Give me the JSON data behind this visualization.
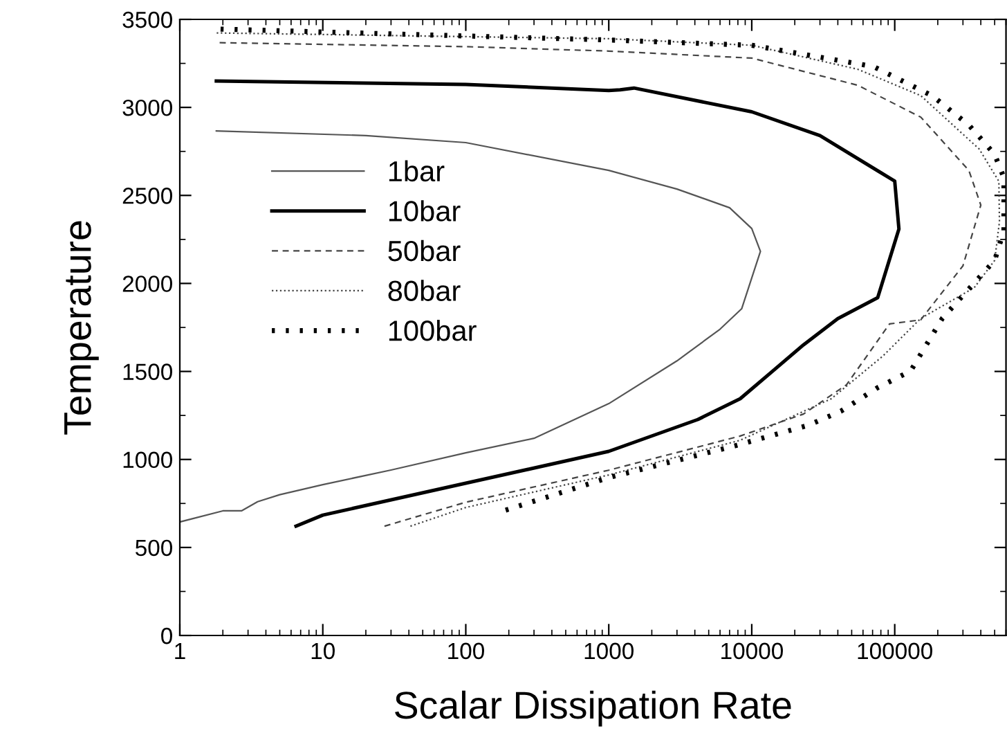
{
  "chart_data": {
    "type": "line",
    "xlabel": "Scalar Dissipation Rate",
    "ylabel": "Temperature",
    "log": "x",
    "xlim": [
      1,
      600000
    ],
    "xticks": [
      1,
      10,
      100,
      1000,
      10000,
      100000
    ],
    "ylim": [
      0,
      3500
    ],
    "yticks": [
      0,
      500,
      1000,
      1500,
      2000,
      2500,
      3000,
      3500
    ],
    "grid": false,
    "legend": "left",
    "marker": "none",
    "series": [
      {
        "name": "1bar",
        "color": "#555555",
        "line_style": "solid",
        "x": [
          1,
          2,
          2.7,
          3.5,
          5,
          10,
          30,
          100,
          300,
          1000,
          3000,
          6000,
          8500,
          11500,
          10000,
          7000,
          3000,
          1000,
          100,
          20,
          1.8
        ],
        "values": [
          645,
          708,
          708,
          760,
          800,
          857,
          940,
          1038,
          1120,
          1317,
          1560,
          1740,
          1856,
          2182,
          2312,
          2430,
          2536,
          2642,
          2800,
          2840,
          2866
        ]
      },
      {
        "name": "10bar",
        "color": "#000000",
        "line_style": "solid",
        "x": [
          6.5,
          10,
          100,
          1000,
          4200,
          8300,
          14000,
          23000,
          40000,
          76000,
          107000,
          100000,
          30000,
          10000,
          1500,
          1200,
          1000,
          100,
          1.8
        ],
        "values": [
          621,
          684,
          865,
          1046,
          1227,
          1345,
          1502,
          1651,
          1800,
          1919,
          2309,
          2581,
          2840,
          2975,
          3110,
          3100,
          3096,
          3130,
          3150
        ]
      },
      {
        "name": "50bar",
        "color": "#444444",
        "line_style": "dashed",
        "x": [
          27,
          100,
          1000,
          8300,
          23000,
          46000,
          92000,
          152000,
          300000,
          400000,
          330000,
          152000,
          55000,
          10000,
          1000,
          100,
          1.8
        ],
        "values": [
          621,
          757,
          939,
          1133,
          1258,
          1424,
          1770,
          1793,
          2100,
          2445,
          2642,
          2945,
          3126,
          3280,
          3320,
          3345,
          3368
        ]
      },
      {
        "name": "80bar",
        "color": "#444444",
        "line_style": "dotted",
        "x": [
          41,
          100,
          1000,
          8300,
          36000,
          83000,
          152000,
          360000,
          500000,
          540000,
          535000,
          390000,
          152000,
          55000,
          10000,
          1000,
          1.8
        ],
        "values": [
          621,
          727,
          912,
          1109,
          1345,
          1589,
          1801,
          1976,
          2131,
          2350,
          2580,
          2763,
          3067,
          3217,
          3353,
          3390,
          3423
        ]
      },
      {
        "name": "100bar",
        "color": "#000000",
        "line_style": "dotted",
        "x": [
          190,
          1000,
          7600,
          25000,
          42000,
          76000,
          129000,
          215000,
          500000,
          580000,
          580000,
          500000,
          330000,
          182000,
          71000,
          10000,
          1000,
          1.9
        ],
        "values": [
          712,
          897,
          1077,
          1195,
          1274,
          1408,
          1502,
          1801,
          2131,
          2300,
          2600,
          2733,
          2900,
          3067,
          3232,
          3353,
          3383,
          3445
        ]
      }
    ]
  }
}
